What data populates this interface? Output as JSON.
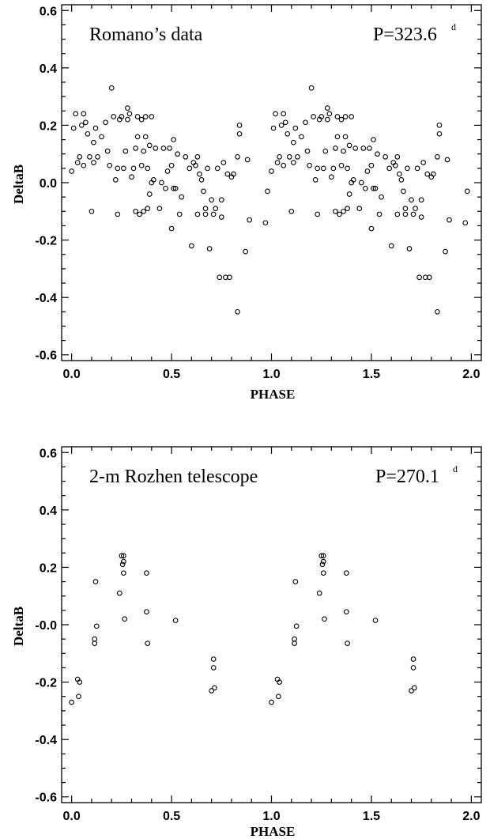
{
  "chart_data": [
    {
      "type": "scatter",
      "title": "Romano’s data",
      "period_label": "P=323.6",
      "period_unit": "d",
      "xlabel": "PHASE",
      "ylabel": "DeltaB",
      "xlim": [
        -0.05,
        2.05
      ],
      "ylim": [
        -0.62,
        0.62
      ],
      "xticks": [
        "0.0",
        "0.5",
        "1.0",
        "1.5",
        "2.0"
      ],
      "yticks": [
        "0.6",
        "0.4",
        "0.2",
        "0.0",
        "-0.2",
        "-0.4",
        "-0.6"
      ],
      "marker": "open-circle",
      "series": [
        {
          "points": [
            [
              0.0,
              0.04
            ],
            [
              0.01,
              0.19
            ],
            [
              0.02,
              0.24
            ],
            [
              0.03,
              0.07
            ],
            [
              0.04,
              0.09
            ],
            [
              0.05,
              0.2
            ],
            [
              0.06,
              0.24
            ],
            [
              0.06,
              0.06
            ],
            [
              0.07,
              0.21
            ],
            [
              0.08,
              0.17
            ],
            [
              0.09,
              0.09
            ],
            [
              0.1,
              -0.1
            ],
            [
              0.11,
              0.14
            ],
            [
              0.11,
              0.07
            ],
            [
              0.12,
              0.19
            ],
            [
              0.13,
              0.09
            ],
            [
              0.15,
              0.16
            ],
            [
              0.17,
              0.21
            ],
            [
              0.18,
              0.11
            ],
            [
              0.19,
              0.06
            ],
            [
              0.2,
              0.33
            ],
            [
              0.21,
              0.23
            ],
            [
              0.22,
              0.01
            ],
            [
              0.23,
              -0.11
            ],
            [
              0.23,
              0.05
            ],
            [
              0.24,
              0.22
            ],
            [
              0.25,
              0.23
            ],
            [
              0.26,
              0.05
            ],
            [
              0.27,
              0.11
            ],
            [
              0.28,
              0.22
            ],
            [
              0.28,
              0.26
            ],
            [
              0.29,
              0.24
            ],
            [
              0.3,
              0.02
            ],
            [
              0.31,
              0.05
            ],
            [
              0.32,
              0.12
            ],
            [
              0.32,
              -0.1
            ],
            [
              0.33,
              0.23
            ],
            [
              0.33,
              0.16
            ],
            [
              0.34,
              -0.11
            ],
            [
              0.35,
              0.06
            ],
            [
              0.35,
              0.22
            ],
            [
              0.36,
              -0.1
            ],
            [
              0.36,
              0.11
            ],
            [
              0.37,
              0.23
            ],
            [
              0.37,
              0.16
            ],
            [
              0.38,
              -0.09
            ],
            [
              0.38,
              0.05
            ],
            [
              0.39,
              -0.04
            ],
            [
              0.39,
              0.13
            ],
            [
              0.4,
              0.0
            ],
            [
              0.4,
              0.23
            ],
            [
              0.41,
              0.01
            ],
            [
              0.42,
              0.12
            ],
            [
              0.44,
              -0.09
            ],
            [
              0.45,
              0.0
            ],
            [
              0.46,
              0.12
            ],
            [
              0.47,
              -0.02
            ],
            [
              0.48,
              0.04
            ],
            [
              0.49,
              0.12
            ],
            [
              0.5,
              0.06
            ],
            [
              0.5,
              -0.16
            ],
            [
              0.51,
              -0.02
            ],
            [
              0.51,
              0.15
            ],
            [
              0.52,
              -0.02
            ],
            [
              0.53,
              0.1
            ],
            [
              0.54,
              -0.11
            ],
            [
              0.55,
              -0.05
            ],
            [
              0.57,
              0.09
            ],
            [
              0.59,
              0.05
            ],
            [
              0.6,
              -0.22
            ],
            [
              0.61,
              0.07
            ],
            [
              0.62,
              0.06
            ],
            [
              0.63,
              -0.11
            ],
            [
              0.63,
              0.09
            ],
            [
              0.64,
              0.03
            ],
            [
              0.65,
              0.01
            ],
            [
              0.66,
              -0.03
            ],
            [
              0.67,
              -0.11
            ],
            [
              0.67,
              -0.09
            ],
            [
              0.68,
              0.05
            ],
            [
              0.69,
              -0.23
            ],
            [
              0.7,
              -0.06
            ],
            [
              0.71,
              -0.11
            ],
            [
              0.72,
              -0.09
            ],
            [
              0.73,
              0.05
            ],
            [
              0.74,
              -0.33
            ],
            [
              0.75,
              -0.12
            ],
            [
              0.75,
              -0.06
            ],
            [
              0.76,
              0.07
            ],
            [
              0.77,
              -0.33
            ],
            [
              0.78,
              0.03
            ],
            [
              0.79,
              -0.33
            ],
            [
              0.8,
              0.02
            ],
            [
              0.81,
              0.03
            ],
            [
              0.83,
              -0.45
            ],
            [
              0.83,
              0.09
            ],
            [
              0.84,
              0.2
            ],
            [
              0.84,
              0.17
            ],
            [
              0.87,
              -0.24
            ],
            [
              0.88,
              0.08
            ],
            [
              0.89,
              -0.13
            ],
            [
              0.97,
              -0.14
            ],
            [
              0.98,
              -0.03
            ]
          ]
        }
      ]
    },
    {
      "type": "scatter",
      "title": "2-m Rozhen telescope",
      "period_label": "P=270.1",
      "period_unit": "d",
      "xlabel": "PHASE",
      "ylabel": "DeltaB",
      "xlim": [
        -0.05,
        2.05
      ],
      "ylim": [
        -0.62,
        0.62
      ],
      "xticks": [
        "0.0",
        "0.5",
        "1.0",
        "1.5",
        "2.0"
      ],
      "yticks": [
        "0.6",
        "0.4",
        "0.2",
        "-0.0",
        "-0.2",
        "-0.4",
        "-0.6"
      ],
      "marker": "open-circle",
      "series": [
        {
          "points": [
            [
              0.0,
              -0.27
            ],
            [
              0.03,
              -0.19
            ],
            [
              0.035,
              -0.25
            ],
            [
              0.04,
              -0.2
            ],
            [
              0.115,
              -0.05
            ],
            [
              0.115,
              -0.065
            ],
            [
              0.12,
              0.15
            ],
            [
              0.125,
              -0.005
            ],
            [
              0.24,
              0.11
            ],
            [
              0.25,
              0.24
            ],
            [
              0.255,
              0.21
            ],
            [
              0.26,
              0.24
            ],
            [
              0.26,
              0.22
            ],
            [
              0.26,
              0.18
            ],
            [
              0.265,
              0.02
            ],
            [
              0.375,
              0.18
            ],
            [
              0.375,
              0.045
            ],
            [
              0.38,
              -0.065
            ],
            [
              0.52,
              0.015
            ],
            [
              0.7,
              -0.23
            ],
            [
              0.71,
              -0.12
            ],
            [
              0.71,
              -0.15
            ],
            [
              0.715,
              -0.22
            ]
          ]
        }
      ]
    }
  ]
}
